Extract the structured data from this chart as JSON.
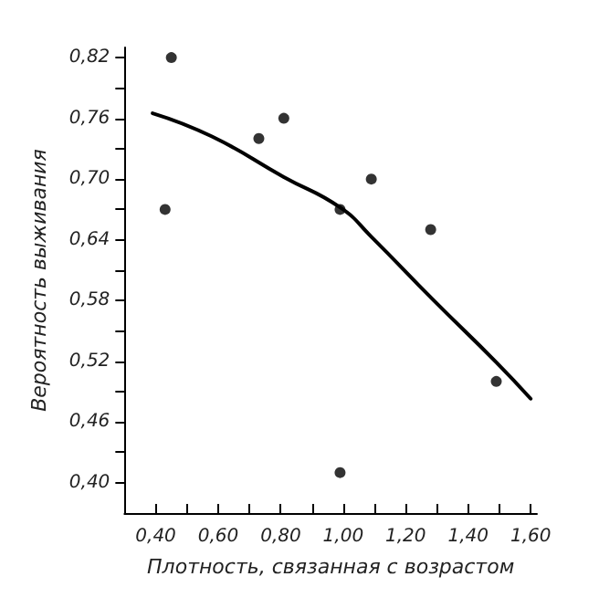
{
  "chart_data": {
    "type": "scatter",
    "xlabel": "Плотность, связанная с возрастом",
    "ylabel": "Вероятность выживания",
    "xlim": [
      0.3,
      1.62
    ],
    "ylim": [
      0.37,
      0.83
    ],
    "xticks": [
      {
        "value": 0.4,
        "label": "0,40"
      },
      {
        "value": 0.5,
        "label": null
      },
      {
        "value": 0.6,
        "label": "0,60"
      },
      {
        "value": 0.7,
        "label": null
      },
      {
        "value": 0.8,
        "label": "0,80"
      },
      {
        "value": 0.9,
        "label": null
      },
      {
        "value": 1.0,
        "label": "1,00"
      },
      {
        "value": 1.1,
        "label": null
      },
      {
        "value": 1.2,
        "label": "1,20"
      },
      {
        "value": 1.3,
        "label": null
      },
      {
        "value": 1.4,
        "label": "1,40"
      },
      {
        "value": 1.5,
        "label": null
      },
      {
        "value": 1.6,
        "label": "1,60"
      }
    ],
    "yticks": [
      {
        "value": 0.4,
        "label": "0,40"
      },
      {
        "value": 0.43,
        "label": null
      },
      {
        "value": 0.46,
        "label": "0,46"
      },
      {
        "value": 0.49,
        "label": null
      },
      {
        "value": 0.52,
        "label": "0,52"
      },
      {
        "value": 0.55,
        "label": null
      },
      {
        "value": 0.58,
        "label": "0,58"
      },
      {
        "value": 0.61,
        "label": null
      },
      {
        "value": 0.64,
        "label": "0,64"
      },
      {
        "value": 0.67,
        "label": null
      },
      {
        "value": 0.7,
        "label": "0,70"
      },
      {
        "value": 0.73,
        "label": null
      },
      {
        "value": 0.76,
        "label": "0,76"
      },
      {
        "value": 0.79,
        "label": null
      },
      {
        "value": 0.82,
        "label": "0,82"
      }
    ],
    "grid": false,
    "series": [
      {
        "color": "#000000",
        "marker": "circle",
        "x": [
          0.43,
          0.45,
          0.73,
          0.81,
          0.99,
          1.09,
          1.28,
          1.49,
          0.99
        ],
        "values": [
          0.67,
          0.82,
          0.74,
          0.76,
          0.67,
          0.7,
          0.65,
          0.5,
          0.41
        ]
      },
      {
        "type": "line",
        "color": "#000000",
        "marker": "none",
        "line_style": "solid",
        "x": [
          0.39,
          0.58,
          0.81,
          0.99,
          1.09,
          1.29,
          1.49,
          1.6
        ],
        "values": [
          0.765,
          0.742,
          0.702,
          0.672,
          0.643,
          0.58,
          0.519,
          0.483
        ]
      }
    ]
  }
}
